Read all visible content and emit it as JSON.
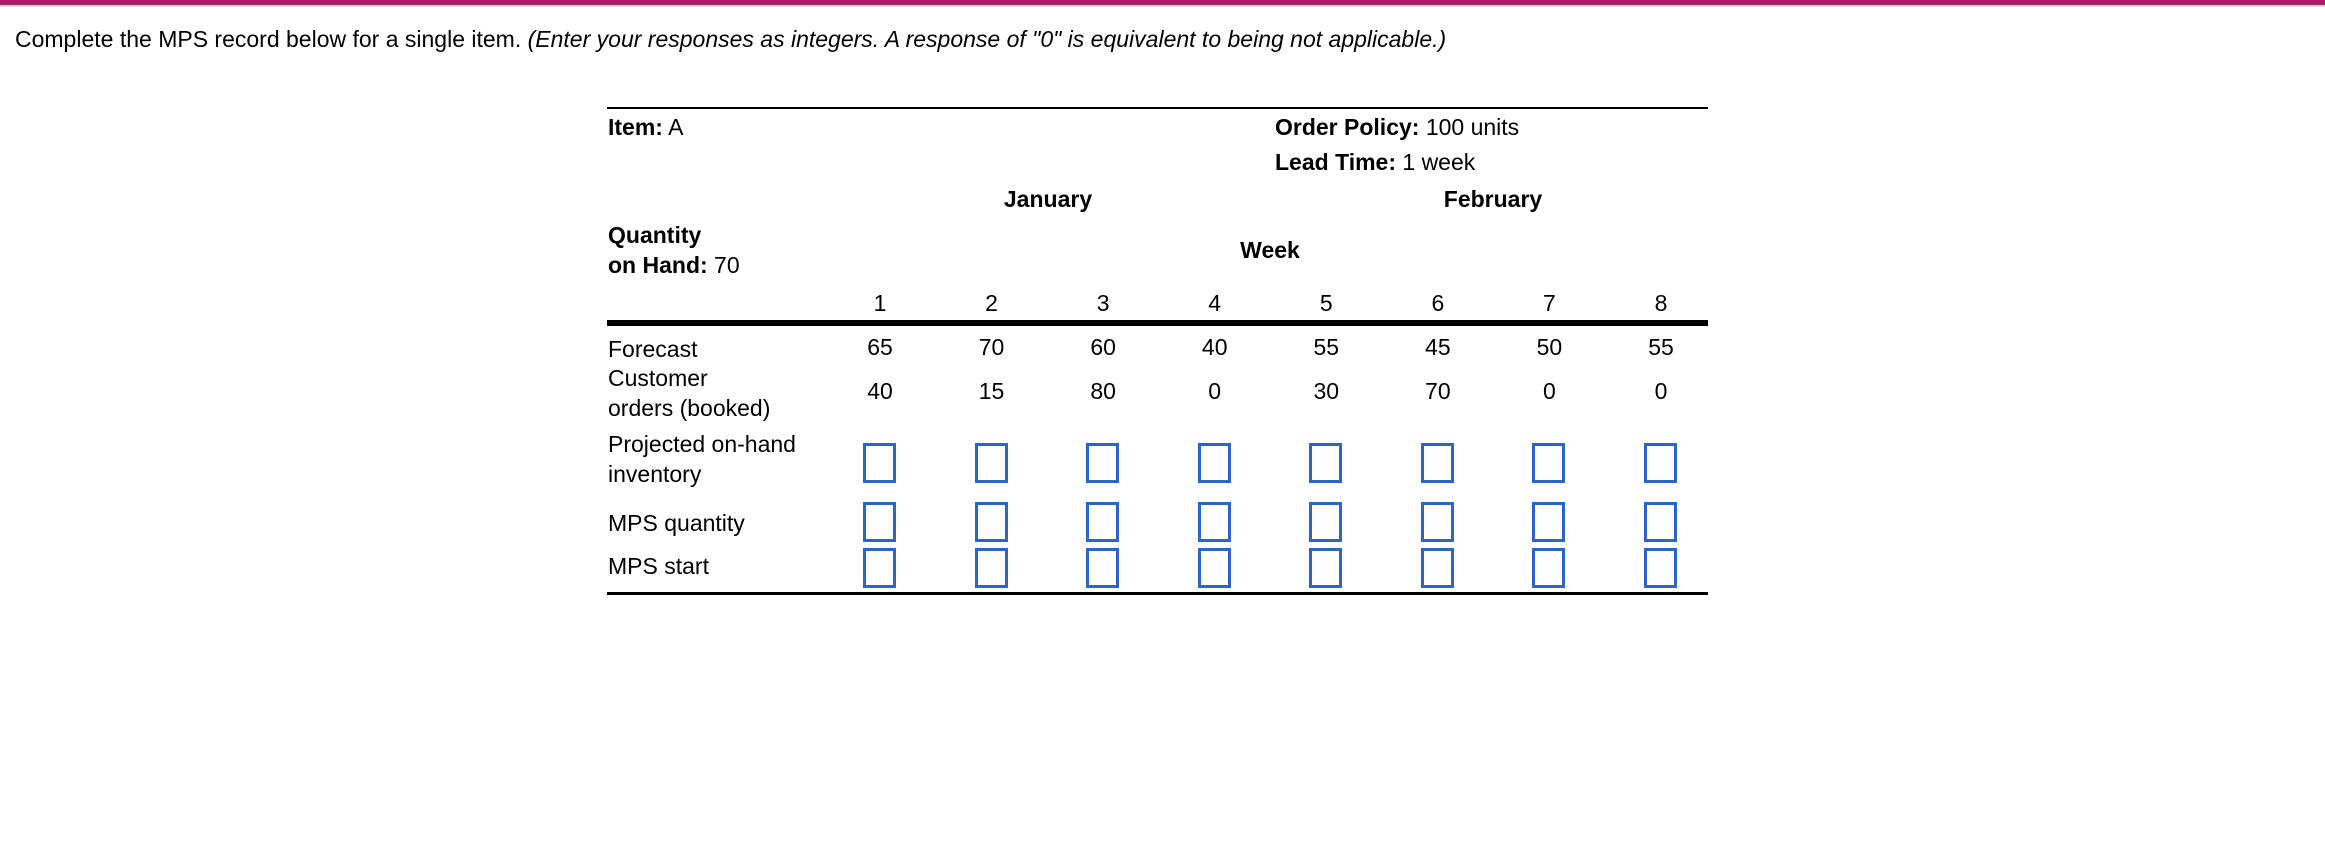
{
  "colors": {
    "top_bar": "#AD1A66",
    "top_bar_underline": "#D8DAE2",
    "input_border": "#2A66C9",
    "text": "#000000"
  },
  "question": {
    "text_regular": "Complete the MPS record below for a single item. ",
    "text_italic": "(Enter your responses as integers. A response of \"0\" is equivalent to being not applicable.)"
  },
  "record": {
    "item_label": "Item:",
    "item_value": "A",
    "order_policy_label": "Order Policy:",
    "order_policy_value": "100 units",
    "lead_time_label": "Lead Time:",
    "lead_time_value": "1 week",
    "month_left": "January",
    "month_right": "February",
    "quantity_line1": "Quantity",
    "quantity_line2_label": "on Hand:",
    "quantity_line2_value": "70",
    "week_header": "Week",
    "week_numbers": [
      "1",
      "2",
      "3",
      "4",
      "5",
      "6",
      "7",
      "8"
    ],
    "rows": [
      {
        "id": "forecast",
        "label_lines": [
          "Forecast"
        ],
        "type": "values",
        "values": [
          "65",
          "70",
          "60",
          "40",
          "55",
          "45",
          "50",
          "55"
        ]
      },
      {
        "id": "customer-orders",
        "label_lines": [
          "Customer",
          "orders (booked)"
        ],
        "type": "values",
        "values": [
          "40",
          "15",
          "80",
          "0",
          "30",
          "70",
          "0",
          "0"
        ]
      },
      {
        "id": "projected-inventory",
        "label_lines": [
          "Projected on-hand",
          "inventory"
        ],
        "type": "inputs",
        "input_values": [
          "",
          "",
          "",
          "",
          "",
          "",
          "",
          ""
        ]
      },
      {
        "id": "mps-quantity",
        "label_lines": [
          "MPS quantity"
        ],
        "type": "inputs",
        "input_values": [
          "",
          "",
          "",
          "",
          "",
          "",
          "",
          ""
        ]
      },
      {
        "id": "mps-start",
        "label_lines": [
          "MPS start"
        ],
        "type": "inputs",
        "input_values": [
          "",
          "",
          "",
          "",
          "",
          "",
          "",
          ""
        ]
      }
    ]
  }
}
